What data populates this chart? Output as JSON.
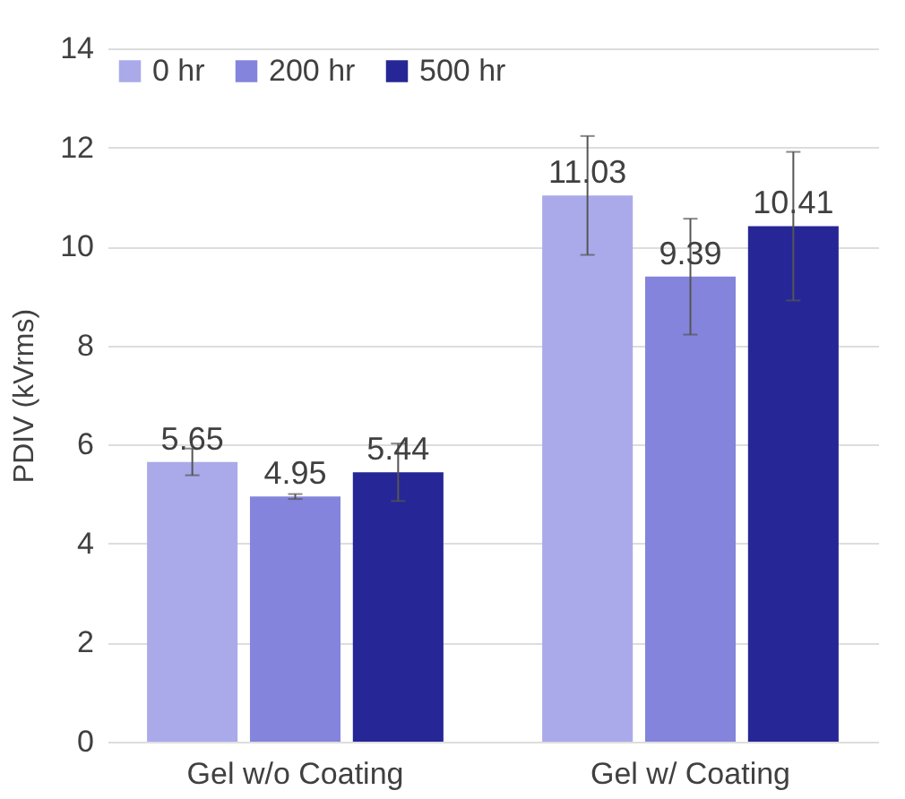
{
  "chart_data": {
    "type": "bar",
    "ylabel": "PDIV (kVrms)",
    "categories": [
      "Gel w/o Coating",
      "Gel w/ Coating"
    ],
    "series": [
      {
        "name": "0 hr",
        "color": "#aaaaea",
        "values": [
          5.65,
          11.03
        ],
        "errors": [
          0.27,
          1.2
        ]
      },
      {
        "name": "200 hr",
        "color": "#8484dc",
        "values": [
          4.95,
          9.39
        ],
        "errors": [
          0.05,
          1.17
        ]
      },
      {
        "name": "500 hr",
        "color": "#262696",
        "values": [
          5.44,
          10.41
        ],
        "errors": [
          0.58,
          1.5
        ]
      }
    ],
    "ylim": [
      0,
      14
    ],
    "yticks": [
      0,
      2,
      4,
      6,
      8,
      10,
      12,
      14
    ],
    "grid": "y",
    "legend": "top left",
    "data_labels": true
  }
}
